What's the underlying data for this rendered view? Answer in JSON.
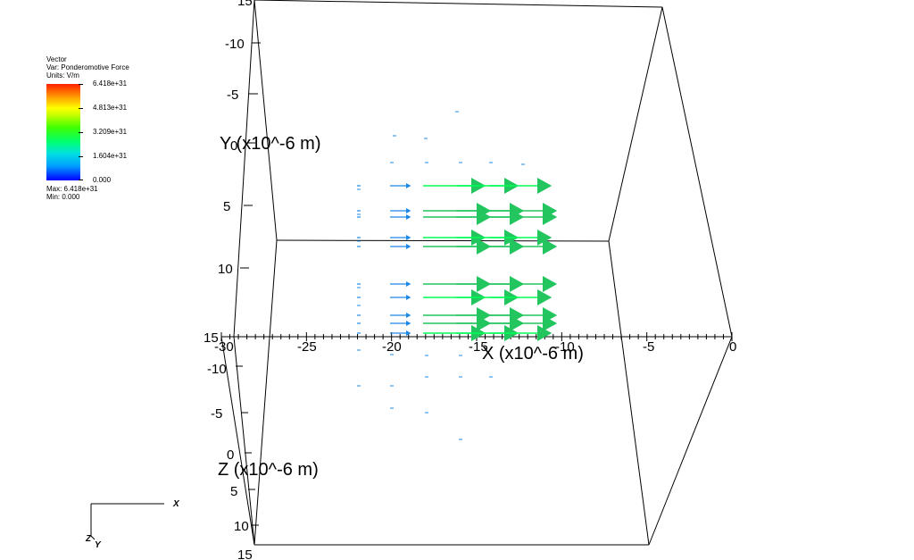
{
  "legend": {
    "plot_type": "Vector",
    "var_line": "Var: Ponderomotive Force",
    "units_line": "Units: V/m",
    "ticks": [
      "6.418e+31",
      "4.813e+31",
      "3.209e+31",
      "1.604e+31",
      "0.000"
    ],
    "max_line": "Max:  6.418e+31",
    "min_line": "Min:  0.000"
  },
  "axes": {
    "x_title": "X (x10^-6 m)",
    "y_title": "Y (x10^-6 m)",
    "z_title": "Z (x10^-6 m)",
    "x_ticks": [
      "-30",
      "-25",
      "-20",
      "-15",
      "-10",
      "-5",
      "0"
    ],
    "y_ticks": [
      "15",
      "-10",
      "-5",
      "0",
      "5",
      "10",
      "15"
    ],
    "z_ticks": [
      "-10",
      "-5",
      "0",
      "5",
      "10",
      "15"
    ]
  },
  "triad": {
    "x": "X",
    "y": "Y",
    "z": "Z"
  },
  "colors": {
    "low": "#0000ff",
    "mid_low": "#1e88e5",
    "mid": "#00ff55",
    "mid_high": "#22c55e",
    "high": "#ff2000"
  }
}
